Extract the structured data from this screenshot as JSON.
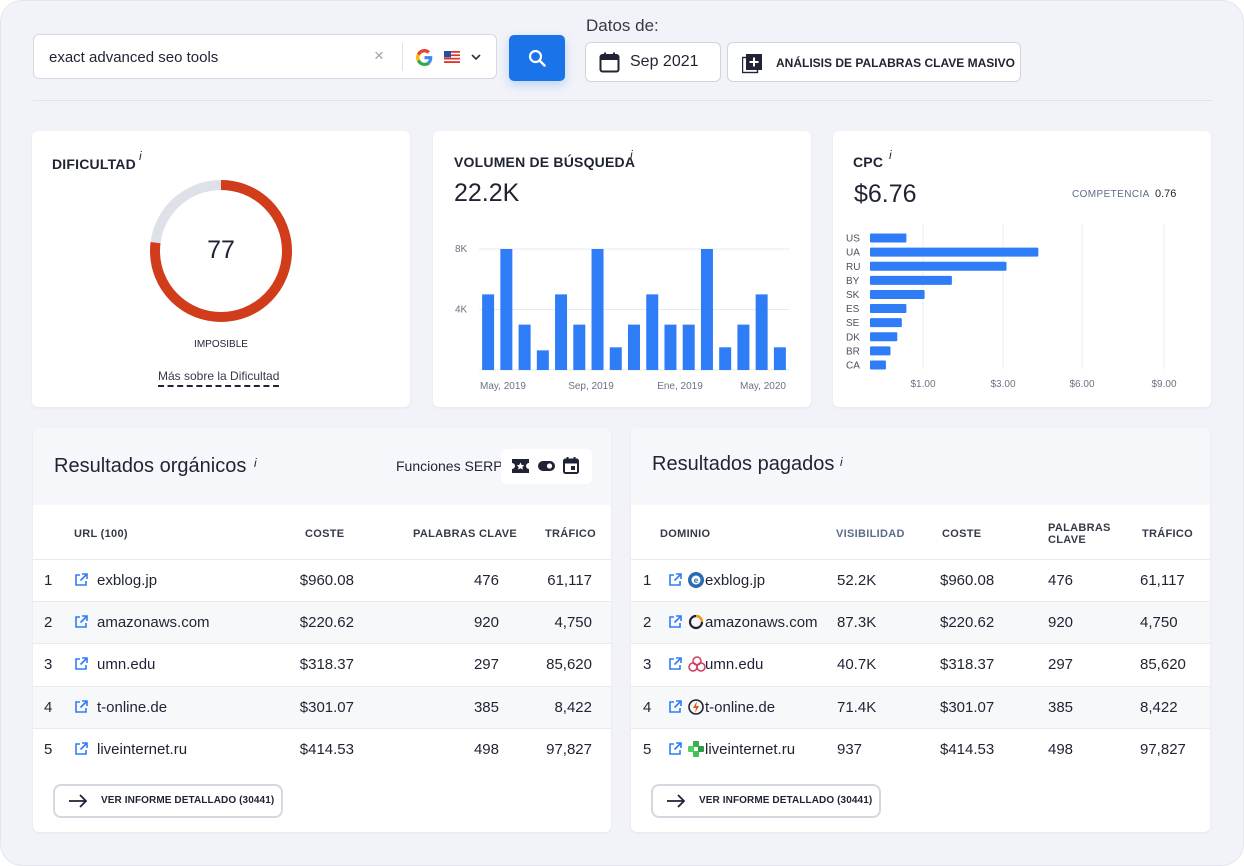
{
  "search": {
    "query": "exact advanced seo tools",
    "clear_symbol": "×",
    "search_engine": "Google",
    "country_flag": "US"
  },
  "date": {
    "label": "Datos de:",
    "value": "Sep 2021"
  },
  "bulk_button": {
    "label": "ANÁLISIS DE PALABRAS CLAVE MASIVO"
  },
  "difficulty": {
    "title": "DIFICULTAD",
    "info": "i",
    "value": "77",
    "percent": 77,
    "level": "IMPOSIBLE",
    "link": "Más sobre la Dificultad",
    "color": "#d13c1b",
    "track_color": "#dfe1e8"
  },
  "volume": {
    "title": "VOLUMEN DE BÚSQUEDA",
    "info": "i",
    "value": "22.2K"
  },
  "cpc": {
    "title": "CPC",
    "info": "i",
    "value": "$6.76",
    "competition_label": "COMPETENCIA",
    "competition_value": "0.76"
  },
  "organic": {
    "title": "Resultados orgánicos",
    "info": "i",
    "serp_label": "Funciones SERP:",
    "serp_icons": [
      "ticket-icon",
      "toggle-icon",
      "calendar-icon"
    ],
    "headers": {
      "url": "URL (100)",
      "cost": "COSTE",
      "keywords": "PALABRAS CLAVE",
      "traffic": "TRÁFICO"
    },
    "rows": [
      {
        "n": "1",
        "url": "exblog.jp",
        "cost": "$960.08",
        "keywords": "476",
        "traffic": "61,117"
      },
      {
        "n": "2",
        "url": "amazonaws.com",
        "cost": "$220.62",
        "keywords": "920",
        "traffic": "4,750"
      },
      {
        "n": "3",
        "url": "umn.edu",
        "cost": "$318.37",
        "keywords": "297",
        "traffic": "85,620"
      },
      {
        "n": "4",
        "url": "t-online.de",
        "cost": "$301.07",
        "keywords": "385",
        "traffic": "8,422"
      },
      {
        "n": "5",
        "url": "liveinternet.ru",
        "cost": "$414.53",
        "keywords": "498",
        "traffic": "97,827"
      }
    ],
    "report_button": "VER INFORME DETALLADO (30441)"
  },
  "paid": {
    "title": "Resultados pagados",
    "info": "i",
    "headers": {
      "domain": "DOMINIO",
      "visibility": "VISIBILIDAD",
      "cost": "COSTE",
      "keywords_1": "PALABRAS",
      "keywords_2": "CLAVE",
      "traffic": "TRÁFICO"
    },
    "rows": [
      {
        "n": "1",
        "domain": "exblog.jp",
        "visibility": "52.2K",
        "cost": "$960.08",
        "keywords": "476",
        "traffic": "61,117",
        "favicon": "exblog-favicon"
      },
      {
        "n": "2",
        "domain": "amazonaws.com",
        "visibility": "87.3K",
        "cost": "$220.62",
        "keywords": "920",
        "traffic": "4,750",
        "favicon": "amazonaws-favicon"
      },
      {
        "n": "3",
        "domain": "umn.edu",
        "visibility": "40.7K",
        "cost": "$318.37",
        "keywords": "297",
        "traffic": "85,620",
        "favicon": "umn-favicon"
      },
      {
        "n": "4",
        "domain": "t-online.de",
        "visibility": "71.4K",
        "cost": "$301.07",
        "keywords": "385",
        "traffic": "8,422",
        "favicon": "t-online-favicon"
      },
      {
        "n": "5",
        "domain": "liveinternet.ru",
        "visibility": "937",
        "cost": "$414.53",
        "keywords": "498",
        "traffic": "97,827",
        "favicon": "liveinternet-favicon"
      }
    ],
    "report_button": "VER INFORME DETALLADO (30441)"
  },
  "chart_data": [
    {
      "type": "bar",
      "ylim": [
        0,
        8000
      ],
      "yticks": [
        "8K",
        "4K"
      ],
      "xticks": [
        "May, 2019",
        "Sep, 2019",
        "Ene, 2019",
        "May, 2020"
      ],
      "values": [
        5000,
        8000,
        3000,
        1300,
        5000,
        3000,
        8000,
        1500,
        3000,
        5000,
        3000,
        3000,
        8000,
        1500,
        3000,
        5000,
        1500
      ],
      "color": "#2f7df6"
    },
    {
      "type": "bar",
      "orientation": "horizontal",
      "categories": [
        "US",
        "UA",
        "RU",
        "BY",
        "SK",
        "ES",
        "SE",
        "DK",
        "BR",
        "CA"
      ],
      "values": [
        0.8,
        3.7,
        3.0,
        1.8,
        1.2,
        0.8,
        0.7,
        0.6,
        0.45,
        0.35
      ],
      "xticks": [
        "$1.00",
        "$3.00",
        "$6.00",
        "$9.00"
      ],
      "color": "#2f7df6"
    }
  ]
}
